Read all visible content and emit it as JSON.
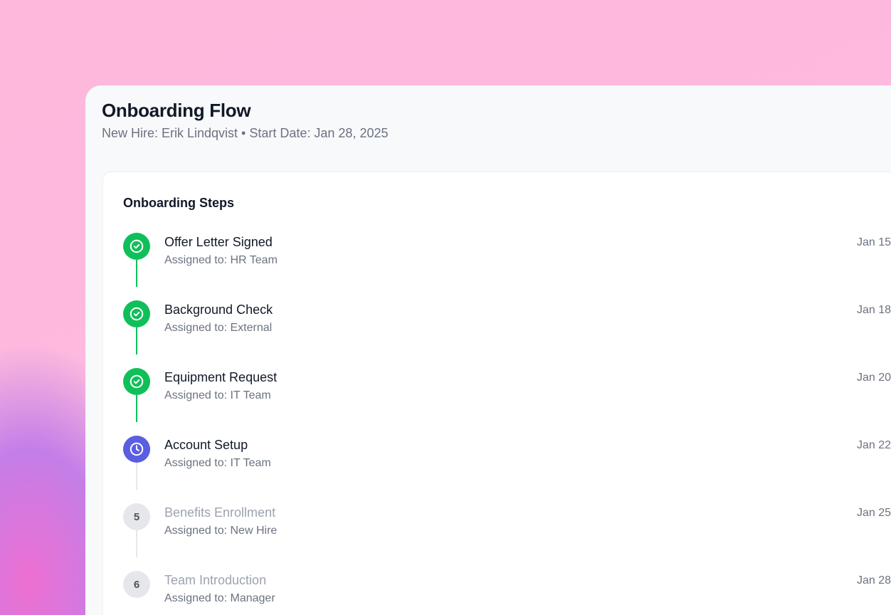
{
  "header": {
    "title": "Onboarding Flow",
    "subtitle": "New Hire: Erik Lindqvist • Start Date: Jan 28, 2025"
  },
  "card": {
    "title": "Onboarding Steps"
  },
  "colors": {
    "done": "#0fbf5a",
    "active": "#5a5ee0",
    "pending": "#e5e7eb"
  },
  "steps": [
    {
      "title": "Offer Letter Signed",
      "assignee": "Assigned to: HR Team",
      "date": "Jan 15",
      "status": "done",
      "icon": "check-circle-icon"
    },
    {
      "title": "Background Check",
      "assignee": "Assigned to: External",
      "date": "Jan 18",
      "status": "done",
      "icon": "check-circle-icon"
    },
    {
      "title": "Equipment Request",
      "assignee": "Assigned to: IT Team",
      "date": "Jan 20",
      "status": "done",
      "icon": "check-circle-icon"
    },
    {
      "title": "Account Setup",
      "assignee": "Assigned to: IT Team",
      "date": "Jan 22",
      "status": "active",
      "icon": "clock-icon"
    },
    {
      "title": "Benefits Enrollment",
      "assignee": "Assigned to: New Hire",
      "date": "Jan 25",
      "status": "pending",
      "number": "5"
    },
    {
      "title": "Team Introduction",
      "assignee": "Assigned to: Manager",
      "date": "Jan 28",
      "status": "pending",
      "number": "6"
    }
  ]
}
